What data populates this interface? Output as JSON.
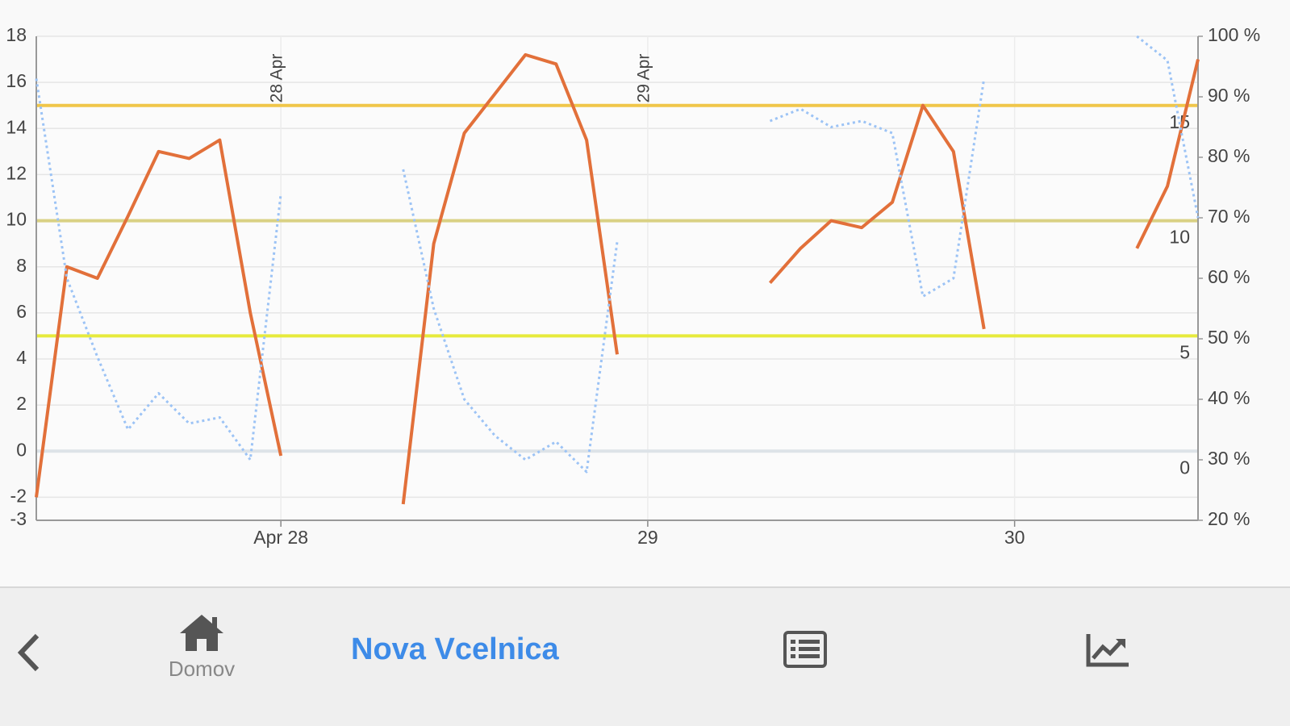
{
  "chart_data": {
    "type": "line",
    "categories": [
      null,
      null,
      null,
      null,
      null,
      null,
      null,
      null,
      "Apr 28",
      null,
      null,
      null,
      null,
      null,
      null,
      null,
      null,
      null,
      null,
      null,
      "29",
      null,
      null,
      null,
      null,
      null,
      null,
      null,
      null,
      null,
      null,
      null,
      "30",
      null,
      null,
      null,
      null,
      null,
      null
    ],
    "series": [
      {
        "color": "#e2703a",
        "style": "solid",
        "axis": "y",
        "values": [
          -2,
          8,
          7.5,
          10.2,
          13,
          12.7,
          13.5,
          6,
          -0.2,
          null,
          null,
          null,
          -2.3,
          9,
          13.8,
          15.5,
          17.2,
          16.8,
          13.5,
          4.2,
          null,
          null,
          null,
          null,
          7.3,
          8.8,
          10,
          9.7,
          10.8,
          15,
          13,
          5.3,
          null,
          null,
          null,
          null,
          8.8,
          11.5,
          17
        ]
      },
      {
        "color": "#9cc3f5",
        "style": "dotted",
        "axis": "y2",
        "values": [
          93,
          60,
          47,
          35,
          41,
          36,
          37,
          30,
          74,
          null,
          null,
          null,
          78,
          55,
          40,
          34,
          30,
          33,
          28,
          66,
          null,
          null,
          null,
          null,
          86,
          88,
          85,
          86,
          84,
          57,
          60,
          93,
          null,
          null,
          null,
          null,
          100,
          96,
          70
        ]
      }
    ],
    "ylim": [
      -3,
      18
    ],
    "yticks": [
      -3,
      -2,
      0,
      2,
      4,
      6,
      8,
      10,
      12,
      14,
      16,
      18
    ],
    "y2lim": [
      20,
      100
    ],
    "y2ticks": [
      {
        "value": 20,
        "label": "20 %"
      },
      {
        "value": 30,
        "label": "30 %"
      },
      {
        "value": 40,
        "label": "40 %"
      },
      {
        "value": 50,
        "label": "50 %"
      },
      {
        "value": 60,
        "label": "60 %"
      },
      {
        "value": 70,
        "label": "70 %"
      },
      {
        "value": 80,
        "label": "80 %"
      },
      {
        "value": 90,
        "label": "90 %"
      },
      {
        "value": 100,
        "label": "100 %"
      }
    ],
    "grid": true,
    "thresholds": [
      {
        "value": 15,
        "color": "#f0c64a"
      },
      {
        "value": 10,
        "color": "#d9d184"
      },
      {
        "value": 5,
        "color": "#e6ea3c"
      },
      {
        "value": 0,
        "color": "#dde3e8"
      }
    ],
    "annotations": [
      "28 Apr",
      "29 Apr"
    ]
  },
  "nav": {
    "home_label": "Domov",
    "title": "Nova Vcelnica"
  }
}
